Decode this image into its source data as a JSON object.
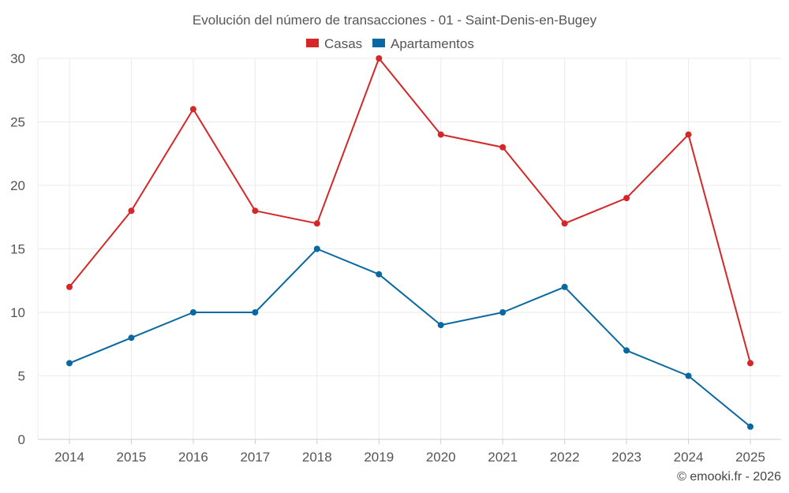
{
  "chart_data": {
    "type": "line",
    "title": "Evolución del número de transacciones - 01 - Saint-Denis-en-Bugey",
    "categories": [
      "2014",
      "2015",
      "2016",
      "2017",
      "2018",
      "2019",
      "2020",
      "2021",
      "2022",
      "2023",
      "2024",
      "2025"
    ],
    "series": [
      {
        "name": "Casas",
        "color": "#d62728",
        "values": [
          12,
          18,
          26,
          18,
          17,
          30,
          24,
          23,
          17,
          19,
          24,
          6
        ]
      },
      {
        "name": "Apartamentos",
        "color": "#0868a0",
        "values": [
          6,
          8,
          10,
          10,
          15,
          13,
          9,
          10,
          12,
          7,
          5,
          1
        ]
      }
    ],
    "ylim": [
      0,
      30
    ],
    "yticks": [
      "0",
      "5",
      "10",
      "15",
      "20",
      "25",
      "30"
    ],
    "grid": true,
    "legend_position": "top-center",
    "xlabel": "",
    "ylabel": ""
  },
  "credit": "© emooki.fr - 2026"
}
